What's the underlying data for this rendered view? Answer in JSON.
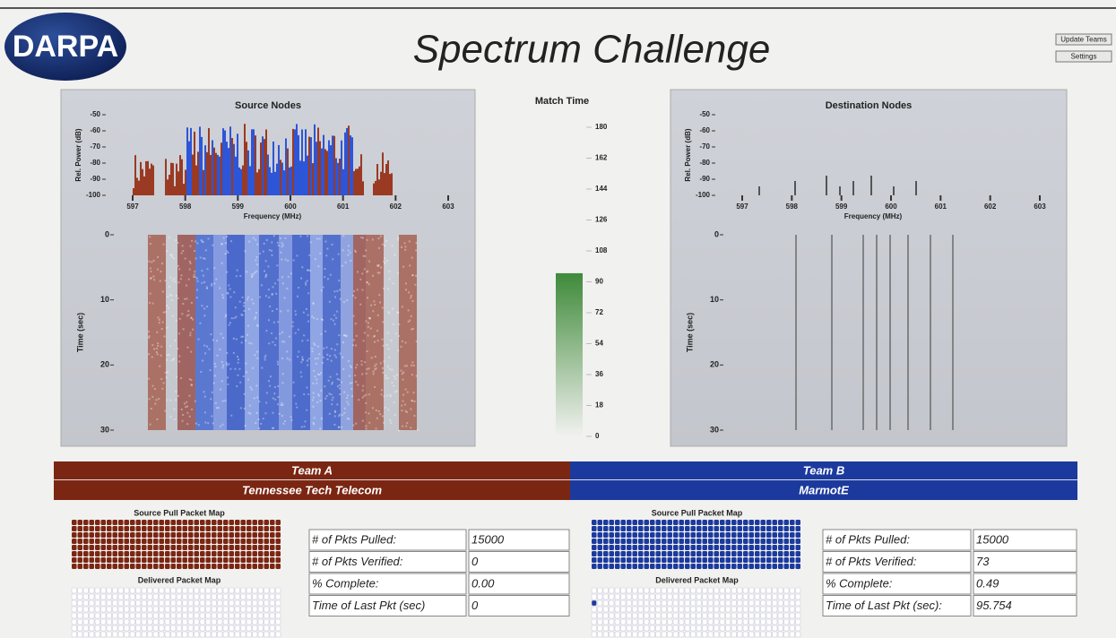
{
  "header": {
    "logo": "DARPA",
    "title": "Spectrum Challenge",
    "buttons": [
      "Update Teams",
      "Settings"
    ]
  },
  "source_panel": {
    "title": "Source Nodes",
    "spectrum": {
      "y_label": "Rel. Power (dB)",
      "yticks": [
        -50,
        -60,
        -70,
        -80,
        -90,
        -100
      ],
      "x_label": "Frequency (MHz)",
      "xticks": [
        597,
        598,
        599,
        600,
        601,
        602,
        603
      ]
    },
    "waterfall": {
      "y_label": "Time (sec)",
      "yticks": [
        0,
        10,
        20,
        30
      ]
    }
  },
  "destination_panel": {
    "title": "Destination Nodes",
    "spectrum": {
      "y_label": "Rel. Power (dB)",
      "yticks": [
        -50,
        -60,
        -70,
        -80,
        -90,
        -100
      ],
      "x_label": "Frequency (MHz)",
      "xticks": [
        597,
        598,
        599,
        600,
        601,
        602,
        603
      ]
    },
    "waterfall": {
      "y_label": "Time (sec)",
      "yticks": [
        0,
        10,
        20,
        30
      ]
    }
  },
  "match_time": {
    "title": "Match Time",
    "ticks": [
      180,
      162,
      144,
      126,
      108,
      90,
      72,
      54,
      36,
      18,
      0
    ],
    "value": 95,
    "color": "#3f8a3a"
  },
  "teams": [
    {
      "label": "Team A",
      "name": "Tennessee Tech Telecom",
      "color": "#7b2613",
      "source_map_title": "Source Pull Packet Map",
      "delivered_map_title": "Delivered Packet Map",
      "stats": [
        [
          "# of Pkts Pulled:",
          "15000"
        ],
        [
          "# of Pkts Verified:",
          "0"
        ],
        [
          "% Complete:",
          "0.00"
        ],
        [
          "Time of Last Pkt (sec)",
          "0"
        ]
      ]
    },
    {
      "label": "Team B",
      "name": "MarmotE",
      "color": "#1c3a9e",
      "source_map_title": "Source Pull Packet Map",
      "delivered_map_title": "Delivered Packet Map",
      "stats": [
        [
          "# of Pkts Pulled:",
          "15000"
        ],
        [
          "# of Pkts Verified:",
          "73"
        ],
        [
          "% Complete:",
          "0.49"
        ],
        [
          "Time of Last Pkt (sec):",
          "95.754"
        ]
      ]
    }
  ]
}
